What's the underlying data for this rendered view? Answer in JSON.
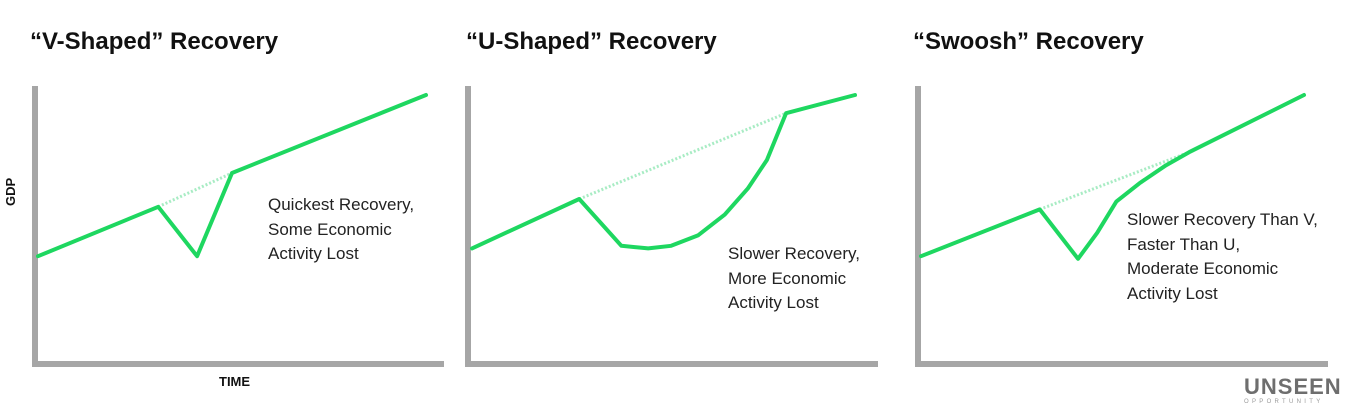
{
  "colors": {
    "line": "#1ed760",
    "trend": "#a8ecc4",
    "axis": "#a6a6a6"
  },
  "chart_data": [
    {
      "type": "line",
      "title": "“V-Shaped” Recovery",
      "xlabel": "TIME",
      "ylabel": "GDP",
      "annotation": [
        "Quickest Recovery,",
        "Some Economic",
        "Activity Lost"
      ],
      "series": [
        {
          "style": "solid",
          "x": [
            0,
            31,
            41,
            50,
            100
          ],
          "y": [
            38,
            57,
            38,
            70,
            100
          ]
        },
        {
          "style": "dashed",
          "x": [
            31,
            50
          ],
          "y": [
            57,
            70
          ]
        }
      ]
    },
    {
      "type": "line",
      "title": "“U-Shaped” Recovery",
      "xlabel": "",
      "ylabel": "",
      "annotation": [
        "Slower Recovery,",
        "More Economic",
        "Activity Lost"
      ],
      "series": [
        {
          "style": "solid",
          "x": [
            0,
            28,
            39,
            46,
            52,
            59,
            66,
            72,
            77,
            82,
            100
          ],
          "y": [
            41,
            60,
            42,
            41,
            42,
            46,
            54,
            64,
            75,
            93,
            100
          ]
        },
        {
          "style": "dashed",
          "x": [
            28,
            82
          ],
          "y": [
            60,
            93
          ]
        }
      ]
    },
    {
      "type": "line",
      "title": "“Swoosh” Recovery",
      "xlabel": "",
      "ylabel": "",
      "annotation": [
        "Slower Recovery Than V,",
        "Faster Than U,",
        "Moderate Economic",
        "Activity Lost"
      ],
      "series": [
        {
          "style": "solid",
          "x": [
            0,
            31,
            41,
            46,
            51,
            57,
            64,
            70,
            100
          ],
          "y": [
            38,
            56,
            37,
            47,
            59,
            66,
            73,
            78,
            100
          ]
        },
        {
          "style": "dashed",
          "x": [
            31,
            70
          ],
          "y": [
            56,
            78
          ]
        }
      ]
    }
  ],
  "logo": {
    "main": "UNSEEN",
    "sub": "OPPORTUNITY"
  }
}
